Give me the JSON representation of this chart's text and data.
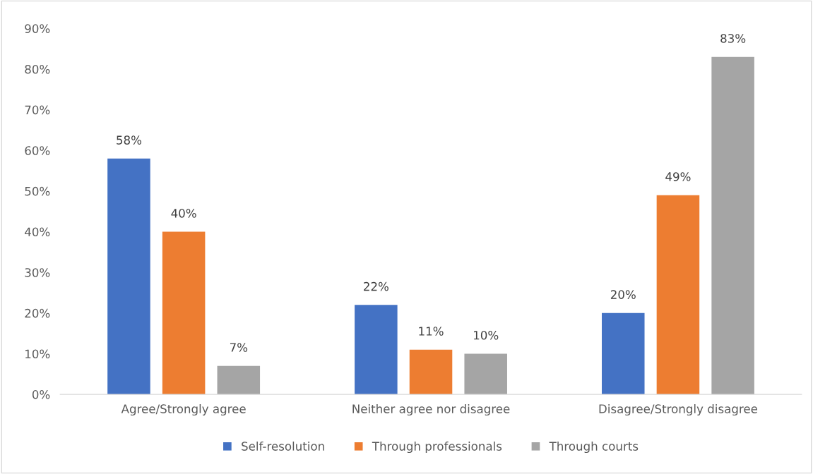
{
  "chart_data": {
    "type": "bar",
    "categories": [
      "Agree/Strongly agree",
      "Neither agree nor disagree",
      "Disagree/Strongly disagree"
    ],
    "series": [
      {
        "name": "Self-resolution",
        "color": "#4472c4",
        "values": [
          58,
          22,
          20
        ],
        "value_labels": [
          "58%",
          "22%",
          "20%"
        ]
      },
      {
        "name": "Through professionals",
        "color": "#ed7d31",
        "values": [
          40,
          11,
          49
        ],
        "value_labels": [
          "40%",
          "11%",
          "49%"
        ]
      },
      {
        "name": "Through courts",
        "color": "#a5a5a5",
        "values": [
          7,
          10,
          83
        ],
        "value_labels": [
          "7%",
          "10%",
          "83%"
        ]
      }
    ],
    "ylim": [
      0,
      90
    ],
    "yticks": [
      {
        "value": 0,
        "label": "0%"
      },
      {
        "value": 10,
        "label": "10%"
      },
      {
        "value": 20,
        "label": "20%"
      },
      {
        "value": 30,
        "label": "30%"
      },
      {
        "value": 40,
        "label": "40%"
      },
      {
        "value": 50,
        "label": "50%"
      },
      {
        "value": 60,
        "label": "60%"
      },
      {
        "value": 70,
        "label": "70%"
      },
      {
        "value": 80,
        "label": "80%"
      },
      {
        "value": 90,
        "label": "90%"
      }
    ],
    "grid": false,
    "legend": "bottom"
  }
}
